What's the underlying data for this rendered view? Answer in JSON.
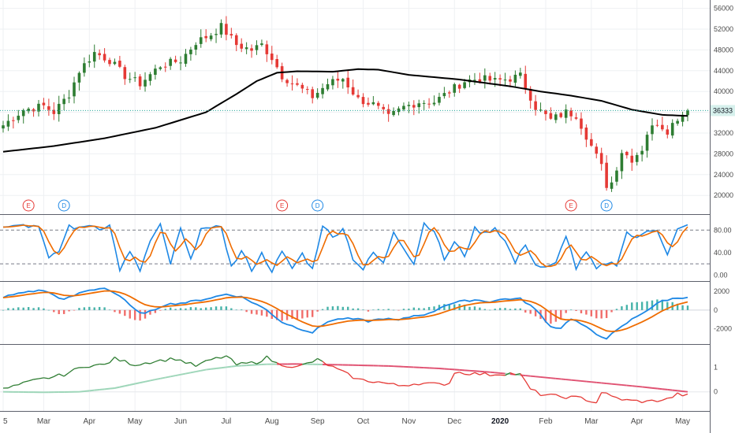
{
  "chart_data": {
    "type": "line",
    "title": "",
    "colors": {
      "up": "#2e7d32",
      "down": "#e53935",
      "sma": "#000000",
      "stoch_k": "#1e88e5",
      "stoch_d": "#ef6c00",
      "macd": "#1e88e5",
      "signal": "#ef6c00",
      "hist_up": "#26a69a",
      "hist_down": "#ef5350",
      "ratio_up": "#2e7d32",
      "ratio_down": "#e53935",
      "ratio_ma_up": "#9ed6b9",
      "ratio_ma_down": "#e05272",
      "grid": "#eef0f3",
      "last_price_line": "#26a69a"
    },
    "x_ticks": [
      "5",
      "Mar",
      "Apr",
      "May",
      "Jun",
      "Jul",
      "Aug",
      "Sep",
      "Oct",
      "Nov",
      "Dec",
      "2020",
      "Feb",
      "Mar",
      "Apr",
      "May"
    ],
    "x_tick_index": [
      0,
      8,
      17,
      26,
      35,
      44,
      53,
      62,
      71,
      80,
      89,
      98,
      107,
      116,
      125,
      134
    ],
    "bold_tick": "2020",
    "n_weeks": 136,
    "price": {
      "y_ticks": [
        20000,
        24000,
        28000,
        32000,
        36000,
        40000,
        44000,
        48000,
        52000,
        56000
      ],
      "ylim": [
        17000,
        57000
      ],
      "last_price": 36333,
      "last_price_label": "36333",
      "close_anchors": [
        [
          0,
          33500
        ],
        [
          4,
          36500
        ],
        [
          8,
          37200
        ],
        [
          10,
          36000
        ],
        [
          13,
          39500
        ],
        [
          15,
          44000
        ],
        [
          18,
          47500
        ],
        [
          21,
          46000
        ],
        [
          24,
          43000
        ],
        [
          27,
          41500
        ],
        [
          31,
          45000
        ],
        [
          35,
          46000
        ],
        [
          38,
          49500
        ],
        [
          41,
          51000
        ],
        [
          43,
          52500
        ],
        [
          46,
          49000
        ],
        [
          49,
          48000
        ],
        [
          51,
          49000
        ],
        [
          53,
          46500
        ],
        [
          55,
          43000
        ],
        [
          58,
          41000
        ],
        [
          61,
          39000
        ],
        [
          64,
          41500
        ],
        [
          67,
          42500
        ],
        [
          70,
          38500
        ],
        [
          73,
          37500
        ],
        [
          76,
          35000
        ],
        [
          79,
          37000
        ],
        [
          82,
          38000
        ],
        [
          85,
          38000
        ],
        [
          88,
          40000
        ],
        [
          91,
          42000
        ],
        [
          94,
          42500
        ],
        [
          97,
          42000
        ],
        [
          100,
          42500
        ],
        [
          102,
          43000
        ],
        [
          105,
          37000
        ],
        [
          108,
          34500
        ],
        [
          111,
          36000
        ],
        [
          113,
          35500
        ],
        [
          116,
          29500
        ],
        [
          118,
          25500
        ],
        [
          119,
          22000
        ],
        [
          120,
          22500
        ],
        [
          122,
          28500
        ],
        [
          124,
          27000
        ],
        [
          126,
          29000
        ],
        [
          127,
          32000
        ],
        [
          129,
          34000
        ],
        [
          131,
          32500
        ],
        [
          133,
          35000
        ],
        [
          135,
          36333
        ]
      ],
      "sma_anchors": [
        [
          0,
          28400
        ],
        [
          10,
          29500
        ],
        [
          20,
          31000
        ],
        [
          30,
          33000
        ],
        [
          40,
          36000
        ],
        [
          46,
          39500
        ],
        [
          50,
          42000
        ],
        [
          54,
          43600
        ],
        [
          58,
          43900
        ],
        [
          65,
          43800
        ],
        [
          70,
          44300
        ],
        [
          74,
          44200
        ],
        [
          80,
          43200
        ],
        [
          90,
          42300
        ],
        [
          100,
          41000
        ],
        [
          106,
          40000
        ],
        [
          112,
          39200
        ],
        [
          118,
          38200
        ],
        [
          124,
          36500
        ],
        [
          130,
          35500
        ],
        [
          135,
          35300
        ]
      ],
      "events": [
        {
          "label": "E",
          "index": 5,
          "color": "#e53935"
        },
        {
          "label": "D",
          "index": 12,
          "color": "#1e88e5"
        },
        {
          "label": "E",
          "index": 55,
          "color": "#e53935"
        },
        {
          "label": "D",
          "index": 62,
          "color": "#1e88e5"
        },
        {
          "label": "E",
          "index": 112,
          "color": "#e53935"
        },
        {
          "label": "D",
          "index": 119,
          "color": "#1e88e5"
        }
      ]
    },
    "stochastic": {
      "y_ticks": [
        0,
        40,
        80
      ],
      "y_tick_labels": [
        "0.00",
        "40.00",
        "80.00"
      ],
      "ylim": [
        -5,
        100
      ],
      "bands": [
        20,
        80
      ],
      "k_anchors": [
        [
          0,
          88
        ],
        [
          3,
          92
        ],
        [
          5,
          86
        ],
        [
          7,
          90
        ],
        [
          9,
          28
        ],
        [
          11,
          42
        ],
        [
          13,
          88
        ],
        [
          15,
          82
        ],
        [
          17,
          90
        ],
        [
          19,
          84
        ],
        [
          21,
          88
        ],
        [
          23,
          10
        ],
        [
          25,
          40
        ],
        [
          27,
          8
        ],
        [
          29,
          60
        ],
        [
          31,
          88
        ],
        [
          33,
          20
        ],
        [
          35,
          82
        ],
        [
          37,
          25
        ],
        [
          39,
          86
        ],
        [
          41,
          80
        ],
        [
          43,
          88
        ],
        [
          45,
          14
        ],
        [
          47,
          42
        ],
        [
          49,
          10
        ],
        [
          51,
          38
        ],
        [
          53,
          8
        ],
        [
          55,
          40
        ],
        [
          57,
          12
        ],
        [
          59,
          38
        ],
        [
          61,
          10
        ],
        [
          63,
          90
        ],
        [
          65,
          66
        ],
        [
          67,
          85
        ],
        [
          69,
          30
        ],
        [
          71,
          10
        ],
        [
          73,
          40
        ],
        [
          75,
          20
        ],
        [
          77,
          78
        ],
        [
          79,
          50
        ],
        [
          81,
          20
        ],
        [
          83,
          92
        ],
        [
          85,
          80
        ],
        [
          87,
          28
        ],
        [
          89,
          58
        ],
        [
          91,
          35
        ],
        [
          93,
          82
        ],
        [
          95,
          74
        ],
        [
          97,
          85
        ],
        [
          99,
          60
        ],
        [
          101,
          22
        ],
        [
          103,
          56
        ],
        [
          105,
          18
        ],
        [
          107,
          12
        ],
        [
          109,
          20
        ],
        [
          111,
          72
        ],
        [
          113,
          12
        ],
        [
          115,
          40
        ],
        [
          117,
          10
        ],
        [
          119,
          22
        ],
        [
          121,
          20
        ],
        [
          123,
          76
        ],
        [
          125,
          64
        ],
        [
          127,
          80
        ],
        [
          129,
          82
        ],
        [
          131,
          35
        ],
        [
          133,
          80
        ],
        [
          135,
          88
        ]
      ]
    },
    "macd": {
      "y_ticks": [
        -2000,
        0,
        2000
      ],
      "y_tick_labels": [
        "-2000",
        "0",
        "2000"
      ],
      "ylim": [
        -3300,
        2600
      ],
      "macd_anchors": [
        [
          0,
          1400
        ],
        [
          5,
          2000
        ],
        [
          8,
          2100
        ],
        [
          12,
          1100
        ],
        [
          16,
          2000
        ],
        [
          20,
          2400
        ],
        [
          23,
          1500
        ],
        [
          26,
          0
        ],
        [
          28,
          -400
        ],
        [
          32,
          600
        ],
        [
          36,
          800
        ],
        [
          40,
          1200
        ],
        [
          44,
          1700
        ],
        [
          47,
          1400
        ],
        [
          50,
          600
        ],
        [
          52,
          0
        ],
        [
          55,
          -1300
        ],
        [
          58,
          -1900
        ],
        [
          61,
          -2400
        ],
        [
          64,
          -1200
        ],
        [
          67,
          -900
        ],
        [
          70,
          -1000
        ],
        [
          72,
          -1200
        ],
        [
          75,
          -900
        ],
        [
          78,
          -1100
        ],
        [
          81,
          -600
        ],
        [
          84,
          -400
        ],
        [
          87,
          500
        ],
        [
          90,
          900
        ],
        [
          93,
          1100
        ],
        [
          96,
          900
        ],
        [
          99,
          1200
        ],
        [
          102,
          1200
        ],
        [
          104,
          500
        ],
        [
          106,
          -500
        ],
        [
          108,
          -1800
        ],
        [
          110,
          -1900
        ],
        [
          112,
          -900
        ],
        [
          114,
          -1500
        ],
        [
          117,
          -2600
        ],
        [
          119,
          -3000
        ],
        [
          121,
          -2200
        ],
        [
          124,
          -1000
        ],
        [
          127,
          0
        ],
        [
          130,
          1000
        ],
        [
          133,
          1300
        ],
        [
          135,
          1400
        ]
      ]
    },
    "ratio": {
      "y_ticks": [
        0,
        1
      ],
      "y_tick_labels": [
        "0",
        "1"
      ],
      "ylim": [
        -0.65,
        1.75
      ],
      "ratio_anchors": [
        [
          0,
          0.1
        ],
        [
          6,
          0.45
        ],
        [
          12,
          0.7
        ],
        [
          16,
          1.05
        ],
        [
          20,
          1.1
        ],
        [
          22,
          1.35
        ],
        [
          26,
          1.1
        ],
        [
          30,
          1.25
        ],
        [
          34,
          1.35
        ],
        [
          38,
          1.05
        ],
        [
          41,
          1.3
        ],
        [
          44,
          1.45
        ],
        [
          46,
          1.1
        ],
        [
          50,
          1.2
        ],
        [
          52,
          1.4
        ],
        [
          54,
          1.15
        ],
        [
          58,
          1.0
        ],
        [
          62,
          1.3
        ],
        [
          66,
          0.9
        ],
        [
          70,
          0.5
        ],
        [
          74,
          0.4
        ],
        [
          78,
          0.25
        ],
        [
          82,
          0.35
        ],
        [
          86,
          0.3
        ],
        [
          88,
          0.35
        ],
        [
          89,
          0.8
        ],
        [
          92,
          0.75
        ],
        [
          96,
          0.7
        ],
        [
          100,
          0.75
        ],
        [
          102,
          0.7
        ],
        [
          104,
          0.1
        ],
        [
          106,
          -0.1
        ],
        [
          110,
          -0.2
        ],
        [
          114,
          -0.25
        ],
        [
          117,
          -0.45
        ],
        [
          118,
          0.0
        ],
        [
          120,
          -0.2
        ],
        [
          123,
          -0.35
        ],
        [
          127,
          -0.4
        ],
        [
          131,
          -0.3
        ],
        [
          133,
          -0.1
        ],
        [
          135,
          -0.15
        ]
      ],
      "ma_anchors": [
        [
          0,
          0.0
        ],
        [
          8,
          -0.02
        ],
        [
          15,
          0.0
        ],
        [
          22,
          0.15
        ],
        [
          30,
          0.5
        ],
        [
          40,
          0.9
        ],
        [
          46,
          1.05
        ],
        [
          52,
          1.12
        ],
        [
          58,
          1.13
        ],
        [
          66,
          1.1
        ],
        [
          76,
          1.05
        ],
        [
          86,
          0.95
        ],
        [
          96,
          0.8
        ],
        [
          106,
          0.6
        ],
        [
          116,
          0.4
        ],
        [
          126,
          0.2
        ],
        [
          135,
          0.0
        ]
      ]
    }
  }
}
